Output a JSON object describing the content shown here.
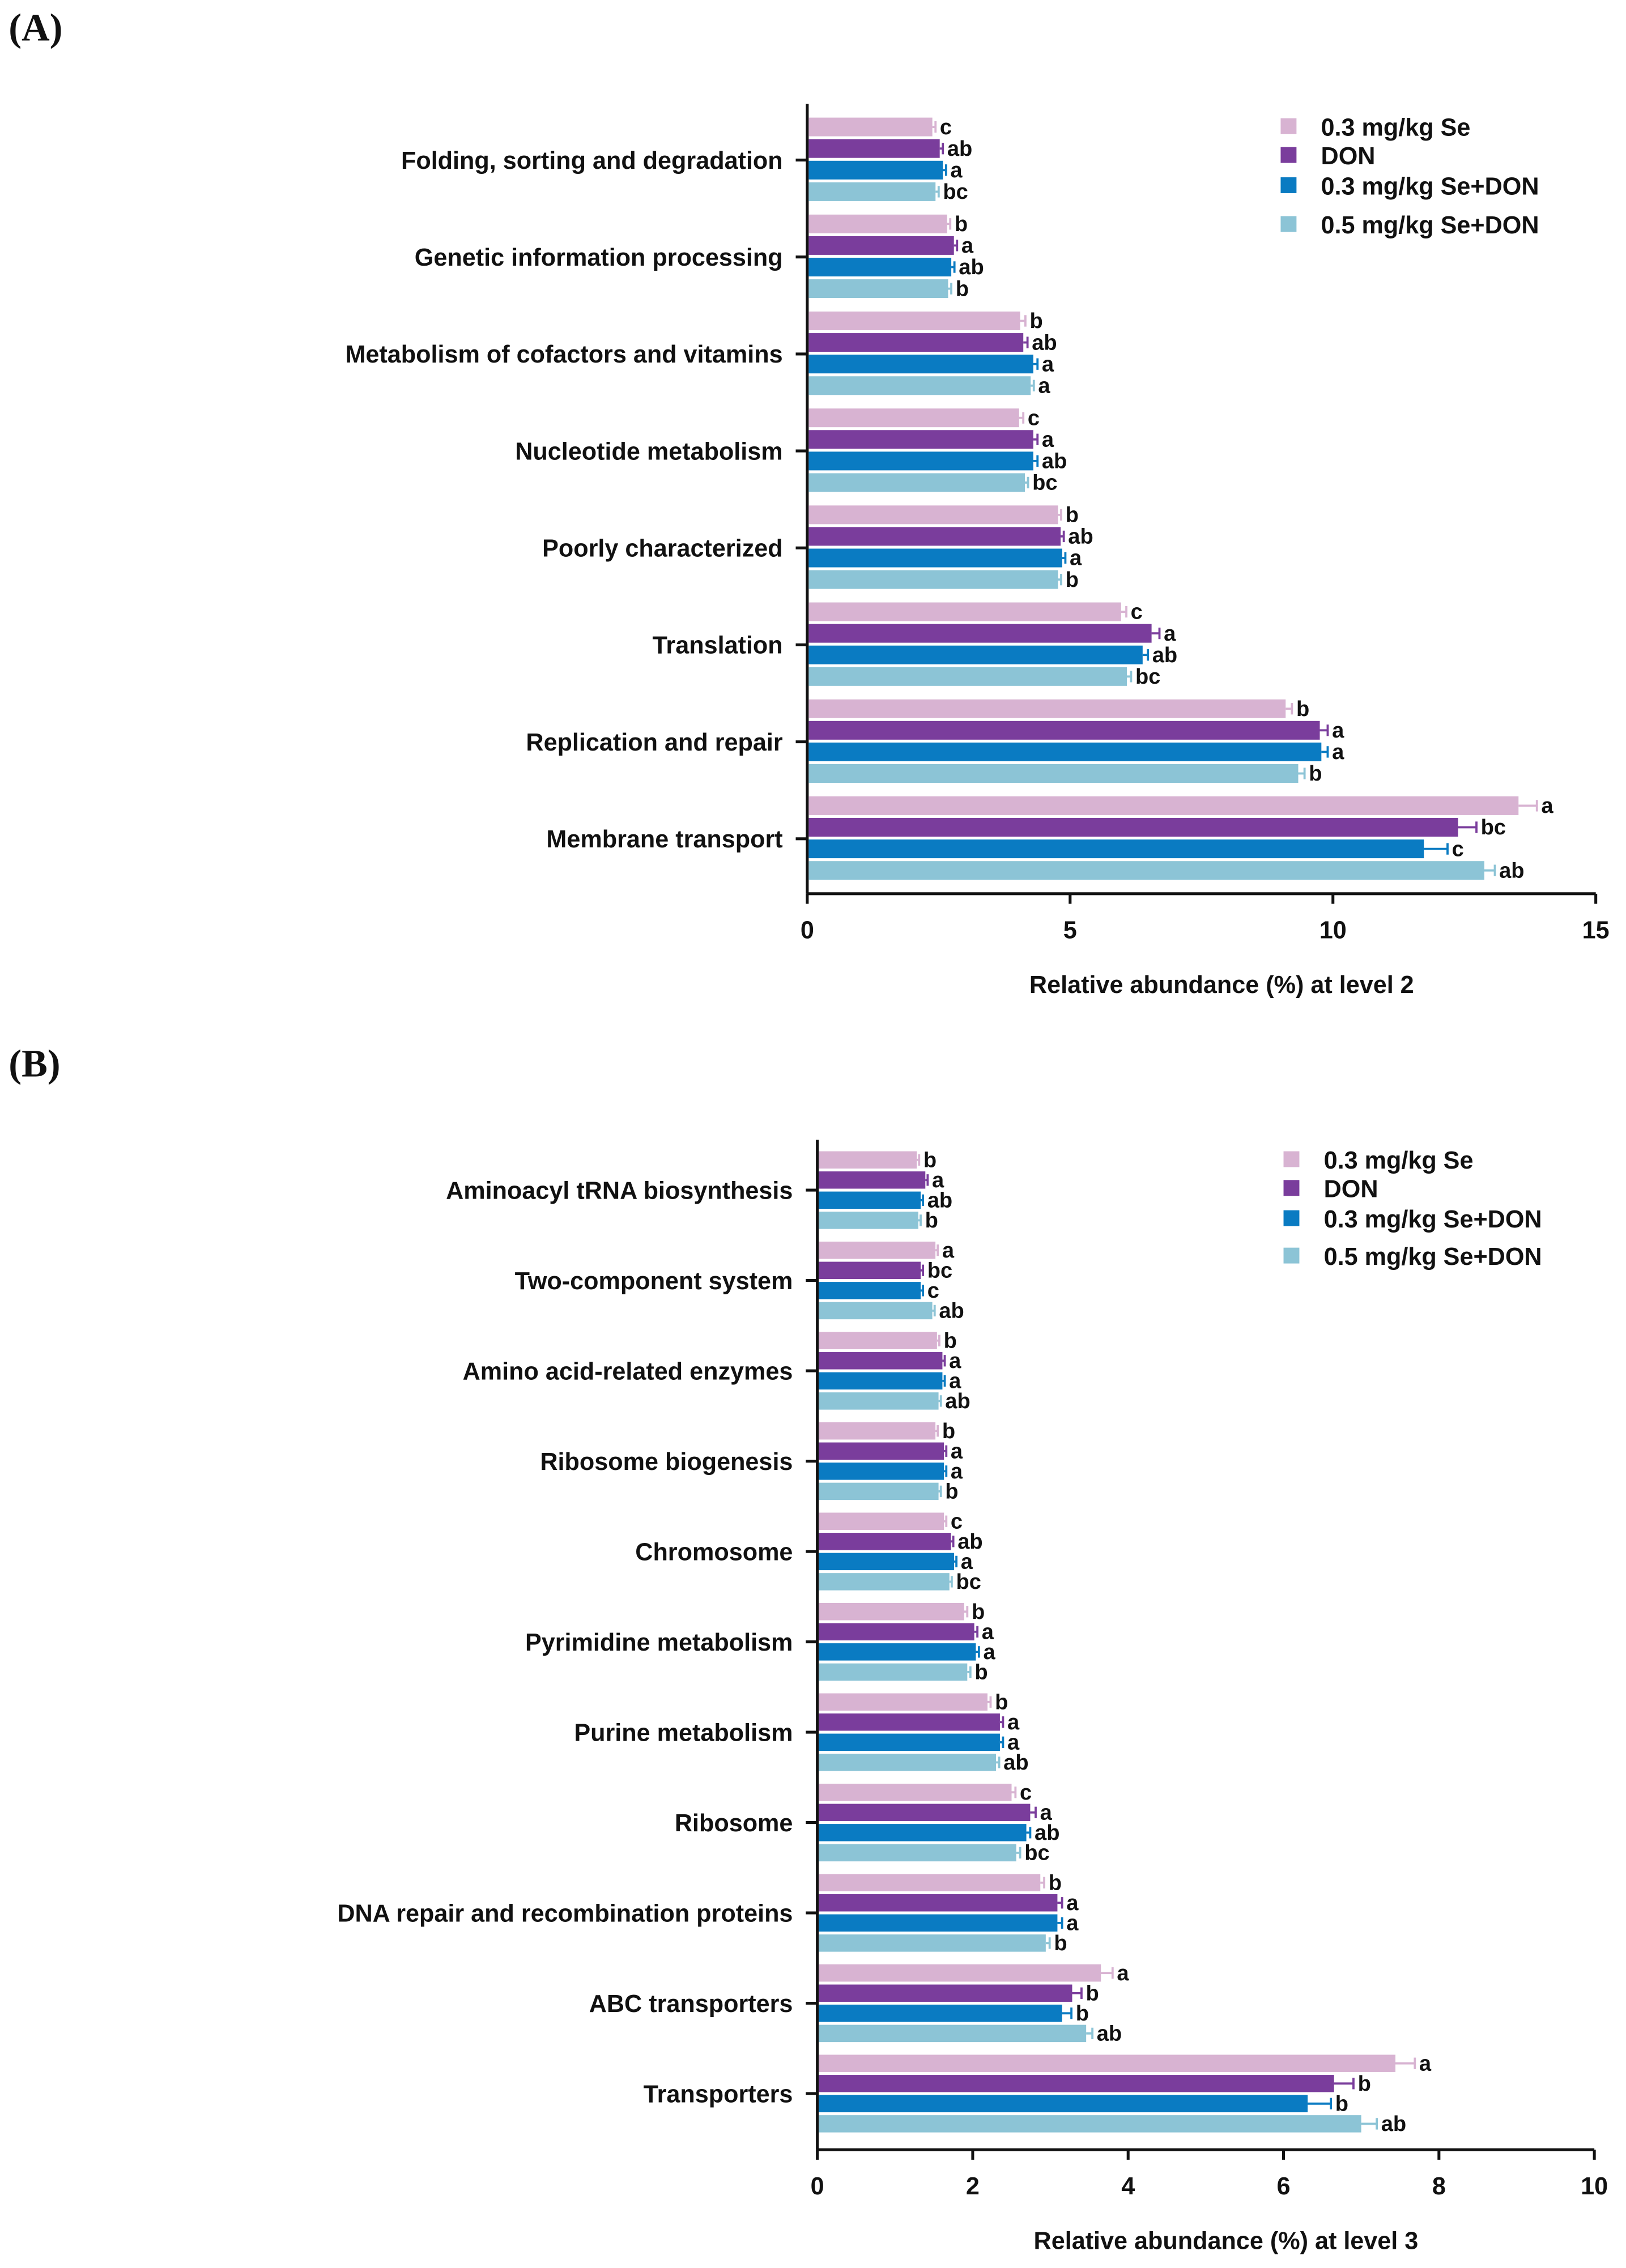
{
  "colors": [
    "#d8b3d2",
    "#7a3d9c",
    "#0a7bc2",
    "#8cc4d6"
  ],
  "chart_data": [
    {
      "type": "bar",
      "orientation": "horizontal",
      "panel_label": "(A)",
      "xlabel": "Relative abundance (%) at level 2",
      "xlim": [
        0,
        15
      ],
      "xticks": [
        "0",
        "5",
        "10",
        "15"
      ],
      "xtick_values": [
        0,
        5,
        10,
        15
      ],
      "legend_position": "top-right",
      "categories": [
        "Folding, sorting and degradation",
        "Genetic information processing",
        "Metabolism of cofactors and vitamins",
        "Nucleotide metabolism",
        "Poorly characterized",
        "Translation",
        "Replication and repair",
        "Membrane transport"
      ],
      "series": [
        {
          "name": "0.3 mg/kg Se",
          "values": [
            2.38,
            2.66,
            4.05,
            4.03,
            4.77,
            5.97,
            9.1,
            13.53
          ],
          "err": [
            0.06,
            0.06,
            0.1,
            0.08,
            0.06,
            0.1,
            0.12,
            0.35
          ],
          "letters": [
            "c",
            "b",
            "b",
            "c",
            "b",
            "c",
            "b",
            "a"
          ]
        },
        {
          "name": "DON",
          "values": [
            2.52,
            2.79,
            4.11,
            4.3,
            4.82,
            6.55,
            9.75,
            12.38
          ],
          "err": [
            0.06,
            0.06,
            0.08,
            0.08,
            0.06,
            0.15,
            0.15,
            0.35
          ],
          "letters": [
            "ab",
            "a",
            "ab",
            "a",
            "ab",
            "a",
            "a",
            "bc"
          ]
        },
        {
          "name": "0.3 mg/kg Se+DON",
          "values": [
            2.58,
            2.74,
            4.3,
            4.3,
            4.85,
            6.38,
            9.78,
            11.73
          ],
          "err": [
            0.06,
            0.06,
            0.08,
            0.08,
            0.06,
            0.1,
            0.12,
            0.45
          ],
          "letters": [
            "a",
            "ab",
            "a",
            "ab",
            "a",
            "ab",
            "a",
            "c"
          ]
        },
        {
          "name": "0.5 mg/kg Se+DON",
          "values": [
            2.44,
            2.68,
            4.25,
            4.14,
            4.77,
            6.08,
            9.34,
            12.88
          ],
          "err": [
            0.06,
            0.06,
            0.06,
            0.06,
            0.06,
            0.08,
            0.12,
            0.2
          ],
          "letters": [
            "bc",
            "b",
            "a",
            "bc",
            "b",
            "bc",
            "b",
            "ab"
          ]
        }
      ]
    },
    {
      "type": "bar",
      "orientation": "horizontal",
      "panel_label": "(B)",
      "xlabel": "Relative abundance (%) at level 3",
      "xlim": [
        0,
        10
      ],
      "xticks": [
        "0",
        "2",
        "4",
        "6",
        "8",
        "10"
      ],
      "xtick_values": [
        0,
        2,
        4,
        6,
        8,
        10
      ],
      "legend_position": "top-right",
      "categories": [
        "Aminoacyl tRNA biosynthesis",
        "Two-component system",
        "Amino acid-related enzymes",
        "Ribosome biogenesis",
        "Chromosome",
        "Pyrimidine metabolism",
        "Purine metabolism",
        "Ribosome",
        "DNA repair and recombination proteins",
        "ABC transporters",
        "Transporters"
      ],
      "series": [
        {
          "name": "0.3 mg/kg Se",
          "values": [
            1.28,
            1.52,
            1.54,
            1.52,
            1.63,
            1.89,
            2.19,
            2.5,
            2.87,
            3.65,
            7.44
          ],
          "err": [
            0.03,
            0.03,
            0.03,
            0.03,
            0.03,
            0.04,
            0.04,
            0.05,
            0.05,
            0.15,
            0.25
          ],
          "letters": [
            "b",
            "a",
            "b",
            "b",
            "c",
            "b",
            "b",
            "c",
            "b",
            "a",
            "a"
          ]
        },
        {
          "name": "DON",
          "values": [
            1.39,
            1.33,
            1.61,
            1.63,
            1.72,
            2.02,
            2.35,
            2.74,
            3.09,
            3.28,
            6.65
          ],
          "err": [
            0.03,
            0.03,
            0.03,
            0.03,
            0.03,
            0.04,
            0.04,
            0.07,
            0.06,
            0.12,
            0.25
          ],
          "letters": [
            "a",
            "bc",
            "a",
            "a",
            "ab",
            "a",
            "a",
            "a",
            "a",
            "b",
            "b"
          ]
        },
        {
          "name": "0.3 mg/kg Se+DON",
          "values": [
            1.33,
            1.33,
            1.61,
            1.63,
            1.76,
            2.04,
            2.35,
            2.69,
            3.09,
            3.15,
            6.31
          ],
          "err": [
            0.03,
            0.03,
            0.03,
            0.03,
            0.03,
            0.04,
            0.04,
            0.05,
            0.06,
            0.12,
            0.3
          ],
          "letters": [
            "ab",
            "c",
            "a",
            "a",
            "a",
            "a",
            "a",
            "ab",
            "a",
            "b",
            "b"
          ]
        },
        {
          "name": "0.5 mg/kg Se+DON",
          "values": [
            1.3,
            1.48,
            1.56,
            1.56,
            1.7,
            1.93,
            2.3,
            2.56,
            2.94,
            3.46,
            7.0
          ],
          "err": [
            0.03,
            0.03,
            0.03,
            0.03,
            0.03,
            0.04,
            0.04,
            0.05,
            0.05,
            0.08,
            0.2
          ],
          "letters": [
            "b",
            "ab",
            "ab",
            "b",
            "bc",
            "b",
            "ab",
            "bc",
            "b",
            "ab",
            "ab"
          ]
        }
      ]
    }
  ]
}
